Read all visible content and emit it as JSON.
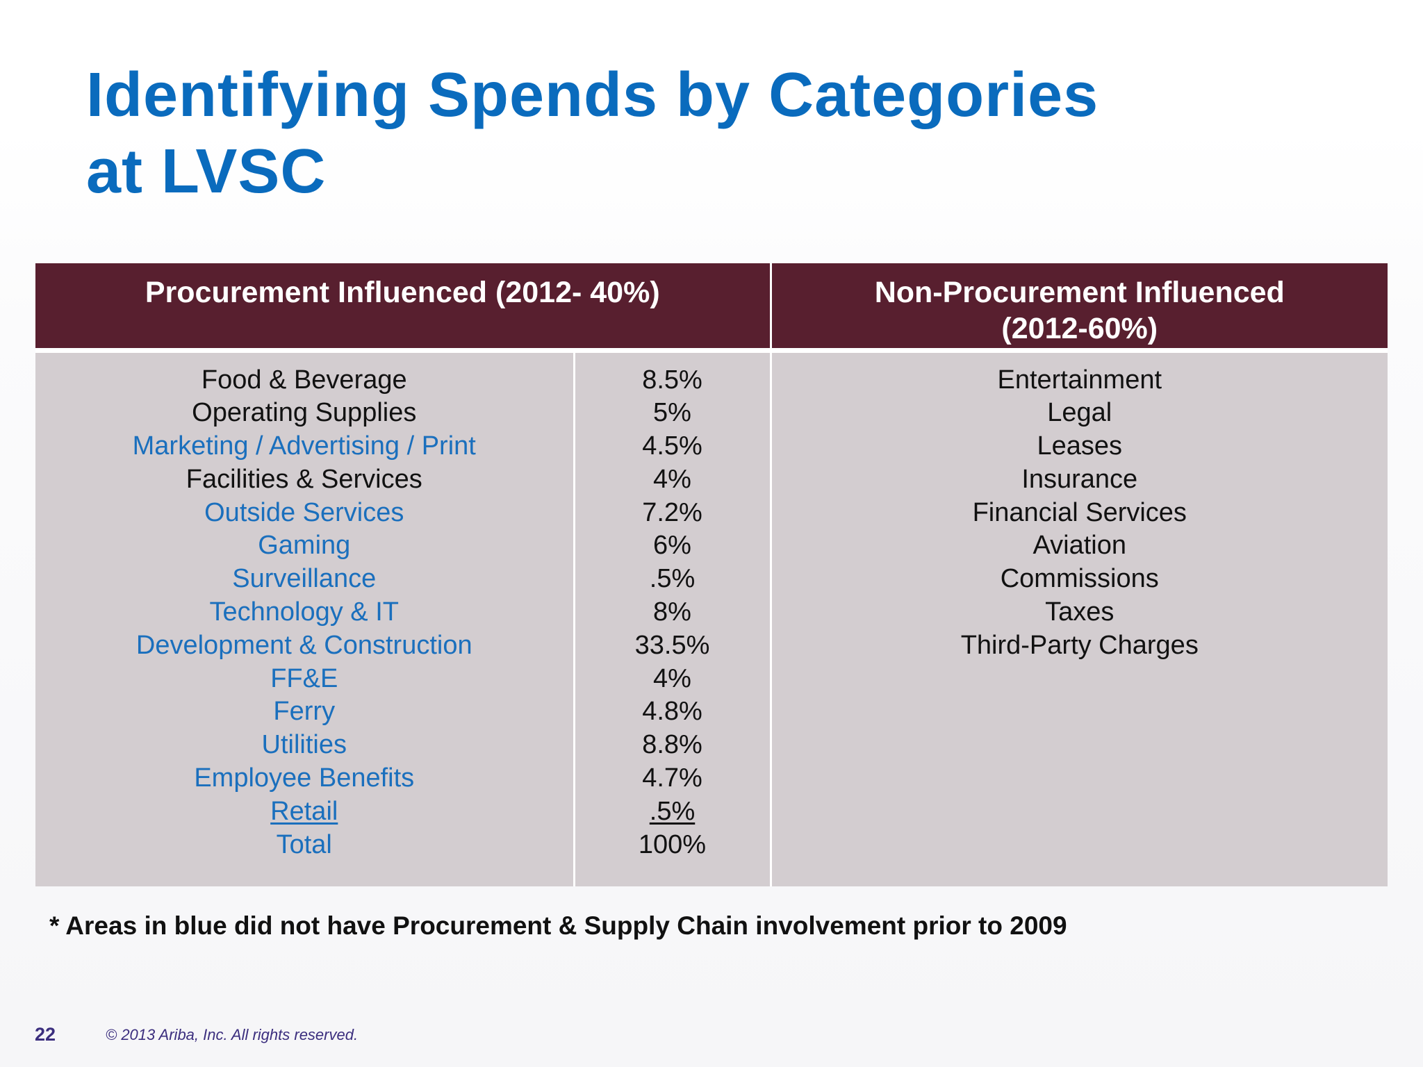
{
  "slide": {
    "title_line1": "Identifying Spends by Categories",
    "title_line2": "at LVSC",
    "table": {
      "headers": {
        "procurement": "Procurement Influenced (2012- 40%)",
        "non_procurement_line1": "Non-Procurement Influenced",
        "non_procurement_line2": "(2012-60%)"
      },
      "procurement_rows": [
        {
          "category": "Food & Beverage",
          "percent": "8.5%",
          "blue": false,
          "underline": false
        },
        {
          "category": "Operating Supplies",
          "percent": "5%",
          "blue": false,
          "underline": false
        },
        {
          "category": "Marketing / Advertising / Print",
          "percent": "4.5%",
          "blue": true,
          "underline": false
        },
        {
          "category": "Facilities & Services",
          "percent": "4%",
          "blue": false,
          "underline": false
        },
        {
          "category": "Outside Services",
          "percent": "7.2%",
          "blue": true,
          "underline": false
        },
        {
          "category": "Gaming",
          "percent": "6%",
          "blue": true,
          "underline": false
        },
        {
          "category": "Surveillance",
          "percent": ".5%",
          "blue": true,
          "underline": false
        },
        {
          "category": "Technology & IT",
          "percent": "8%",
          "blue": true,
          "underline": false
        },
        {
          "category": "Development & Construction",
          "percent": "33.5%",
          "blue": true,
          "underline": false
        },
        {
          "category": "FF&E",
          "percent": "4%",
          "blue": true,
          "underline": false
        },
        {
          "category": "Ferry",
          "percent": "4.8%",
          "blue": true,
          "underline": false
        },
        {
          "category": "Utilities",
          "percent": "8.8%",
          "blue": true,
          "underline": false
        },
        {
          "category": "Employee Benefits",
          "percent": "4.7%",
          "blue": true,
          "underline": false
        },
        {
          "category": "Retail",
          "percent": ".5%",
          "blue": true,
          "underline": true
        },
        {
          "category": "Total",
          "percent": "100%",
          "blue": true,
          "underline": false
        }
      ],
      "non_procurement_items": [
        "Entertainment",
        "Legal",
        "Leases",
        "Insurance",
        "Financial Services",
        "Aviation",
        "Commissions",
        "Taxes",
        "Third-Party Charges"
      ]
    },
    "footnote": "* Areas in blue did not have Procurement & Supply Chain involvement prior to 2009",
    "page_number": "22",
    "copyright": "© 2013 Ariba, Inc. All rights reserved."
  },
  "colors": {
    "title_blue": "#0a6bbd",
    "category_blue": "#1a6fbd",
    "header_maroon": "#581f2f",
    "body_gray": "#d3cdd0",
    "footer_purple": "#3b2e7e"
  }
}
